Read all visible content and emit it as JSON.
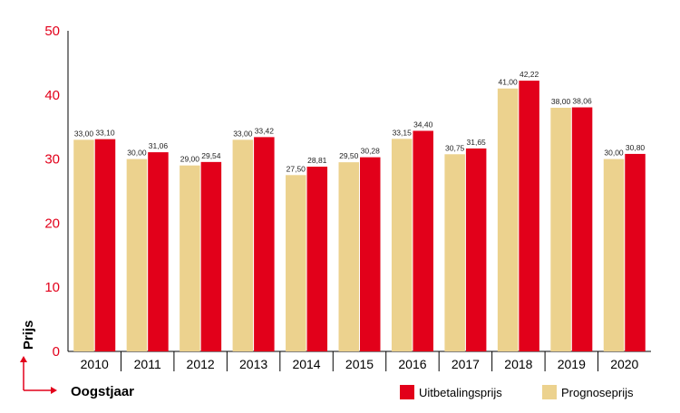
{
  "chart_data": {
    "type": "bar",
    "title": "",
    "xlabel": "Oogstjaar",
    "ylabel": "Prijs",
    "ylim": [
      0,
      50
    ],
    "yticks": [
      "0",
      "10",
      "20",
      "30",
      "40",
      "50"
    ],
    "grid": false,
    "legend_position": "bottom-right",
    "categories": [
      "2010",
      "2011",
      "2012",
      "2013",
      "2014",
      "2015",
      "2016",
      "2017",
      "2018",
      "2019",
      "2020"
    ],
    "series": [
      {
        "name": "Prognoseprijs",
        "color": "#ecd28e",
        "values": [
          33.0,
          30.0,
          29.0,
          33.0,
          27.5,
          29.5,
          33.15,
          30.75,
          41.0,
          38.0,
          30.0
        ],
        "labels": [
          "33,00",
          "30,00",
          "29,00",
          "33,00",
          "27,50",
          "29,50",
          "33,15",
          "30,75",
          "41,00",
          "38,00",
          "30,00"
        ]
      },
      {
        "name": "Uitbetalingsprijs",
        "color": "#e2001a",
        "values": [
          33.1,
          31.06,
          29.54,
          33.42,
          28.81,
          30.28,
          34.4,
          31.65,
          42.22,
          38.06,
          30.8
        ],
        "labels": [
          "33,10",
          "31,06",
          "29,54",
          "33,42",
          "28,81",
          "30,28",
          "34,40",
          "31,65",
          "42,22",
          "38,06",
          "30,80"
        ]
      }
    ],
    "legend": [
      "Uitbetalingsprijs",
      "Prognoseprijs"
    ]
  }
}
